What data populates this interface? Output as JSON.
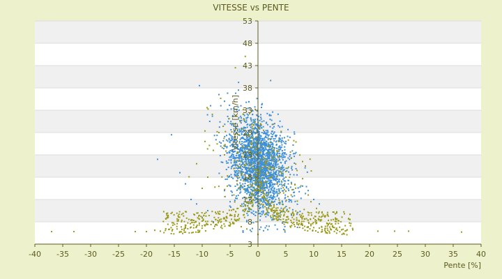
{
  "chart_data": {
    "type": "scatter",
    "title": "VITESSE vs PENTE",
    "xlabel": "Pente [%]",
    "ylabel": "Vitesse [km/h]",
    "xlim": [
      -40,
      40
    ],
    "ylim": [
      3,
      53
    ],
    "xticks": [
      -40,
      -35,
      -30,
      -25,
      -20,
      -15,
      -10,
      -5,
      0,
      5,
      10,
      15,
      20,
      25,
      30,
      35,
      40
    ],
    "yticks": [
      3,
      8,
      13,
      18,
      23,
      28,
      33,
      38,
      43,
      48,
      53
    ],
    "xtick_labels": [
      "-40",
      "-35",
      "-30",
      "-25",
      "-20",
      "-15",
      "-10",
      "-5",
      "0",
      "5",
      "10",
      "15",
      "20",
      "25",
      "30",
      "35",
      "40"
    ],
    "ytick_labels": [
      "3",
      "8",
      "13",
      "18",
      "23",
      "28",
      "33",
      "38",
      "43",
      "48",
      "53"
    ],
    "grid": "horizontal alternating bands",
    "colors": {
      "background": "#eef2cc",
      "band_light": "#ffffff",
      "band_dark": "#f0f0f0",
      "axis": "#5a5a1e",
      "series_blue": "#3d8fd9",
      "series_olive": "#9a9a1a"
    },
    "series": [
      {
        "color": "#3d8fd9",
        "cluster": {
          "center": [
            0,
            21
          ],
          "spread": [
            2.6,
            5.2
          ],
          "approx_count": 2200
        },
        "values": [
          [
            -10.5,
            38.5
          ],
          [
            -8.5,
            34
          ],
          [
            -7,
            36.5
          ],
          [
            -6,
            35
          ],
          [
            -4,
            36.8
          ],
          [
            -3.5,
            37.5
          ],
          [
            -1,
            33
          ],
          [
            0.5,
            32
          ],
          [
            -15.5,
            27.5
          ],
          [
            -18,
            22
          ],
          [
            -14,
            19
          ],
          [
            -13,
            16.5
          ],
          [
            -12,
            13
          ],
          [
            -11,
            12
          ],
          [
            -10,
            9
          ],
          [
            -9,
            10.5
          ],
          [
            -8,
            8
          ],
          [
            3,
            30
          ],
          [
            5,
            26
          ],
          [
            6,
            20
          ],
          [
            7,
            18.5
          ],
          [
            8,
            16
          ],
          [
            9,
            15
          ],
          [
            10,
            13
          ],
          [
            11,
            12
          ],
          [
            -2,
            8
          ],
          [
            -1,
            6.5
          ],
          [
            1,
            6
          ],
          [
            2,
            7
          ],
          [
            -6,
            15
          ],
          [
            -5,
            12.5
          ],
          [
            4,
            10
          ],
          [
            6,
            9.5
          ]
        ]
      },
      {
        "color": "#9a9a1a",
        "values": [
          [
            -37,
            5.8
          ],
          [
            -33,
            5.8
          ],
          [
            -22,
            5.8
          ],
          [
            -20,
            5.8
          ],
          [
            -18.5,
            6.1
          ],
          [
            -17.5,
            5.9
          ],
          [
            -16,
            6.3
          ],
          [
            -14.5,
            6.4
          ],
          [
            -13,
            6.6
          ],
          [
            -12,
            6.8
          ],
          [
            -11,
            6.9
          ],
          [
            -10,
            7.1
          ],
          [
            -9,
            7.4
          ],
          [
            -8,
            7.8
          ],
          [
            -7,
            8.1
          ],
          [
            -6,
            8.7
          ],
          [
            -5,
            9.4
          ],
          [
            -4,
            10.3
          ],
          [
            -3,
            11.5
          ],
          [
            -2,
            13.3
          ],
          [
            -1,
            16
          ],
          [
            -0.5,
            19
          ],
          [
            0.5,
            17
          ],
          [
            1,
            14.5
          ],
          [
            2,
            11.8
          ],
          [
            3,
            10.2
          ],
          [
            4,
            9.1
          ],
          [
            5,
            8.4
          ],
          [
            6,
            7.9
          ],
          [
            7,
            7.5
          ],
          [
            8,
            7.2
          ],
          [
            9,
            6.9
          ],
          [
            10,
            6.7
          ],
          [
            11,
            6.6
          ],
          [
            12,
            6.5
          ],
          [
            13,
            6.4
          ],
          [
            14,
            6.3
          ],
          [
            15,
            6.2
          ],
          [
            16,
            6.2
          ],
          [
            17,
            6.2
          ],
          [
            21.5,
            5.9
          ],
          [
            24.5,
            5.9
          ],
          [
            27,
            5.9
          ],
          [
            36.5,
            5.7
          ],
          [
            -8,
            24
          ],
          [
            -9,
            18
          ],
          [
            -10,
            15.5
          ],
          [
            -11,
            21
          ],
          [
            -9.5,
            26
          ],
          [
            -7,
            28
          ],
          [
            -6,
            23
          ],
          [
            -4.5,
            30
          ],
          [
            -3.5,
            27.5
          ],
          [
            -2.5,
            31
          ],
          [
            -1.5,
            32.2
          ],
          [
            -0.5,
            33.2
          ],
          [
            1,
            28.5
          ],
          [
            2,
            25
          ],
          [
            3,
            22.5
          ],
          [
            4,
            20
          ],
          [
            5,
            18
          ],
          [
            6,
            16.5
          ],
          [
            7,
            19.5
          ],
          [
            8,
            21.5
          ],
          [
            8.5,
            20.5
          ],
          [
            9,
            14
          ],
          [
            9.5,
            12.5
          ],
          [
            10.5,
            11
          ],
          [
            11.5,
            10.2
          ],
          [
            12.5,
            9.5
          ],
          [
            13.5,
            8.5
          ],
          [
            14.5,
            8.2
          ],
          [
            15.5,
            9.8
          ],
          [
            16.5,
            8.5
          ],
          [
            -5,
            7.2
          ],
          [
            -3,
            6.9
          ],
          [
            -2,
            6.4
          ],
          [
            0,
            5.2
          ],
          [
            -1.5,
            21
          ],
          [
            0.5,
            23.5
          ],
          [
            1.5,
            18.5
          ],
          [
            -3,
            18.5
          ],
          [
            -5.5,
            16
          ]
        ]
      }
    ]
  }
}
